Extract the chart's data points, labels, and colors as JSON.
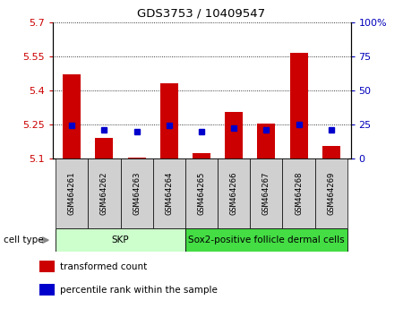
{
  "title": "GDS3753 / 10409547",
  "samples": [
    "GSM464261",
    "GSM464262",
    "GSM464263",
    "GSM464264",
    "GSM464265",
    "GSM464266",
    "GSM464267",
    "GSM464268",
    "GSM464269"
  ],
  "red_values": [
    5.47,
    5.19,
    5.105,
    5.43,
    5.125,
    5.305,
    5.255,
    5.565,
    5.155
  ],
  "blue_values": [
    5.245,
    5.225,
    5.22,
    5.245,
    5.22,
    5.235,
    5.225,
    5.25,
    5.225
  ],
  "ylim_left": [
    5.1,
    5.7
  ],
  "ylim_right": [
    0,
    100
  ],
  "yticks_left": [
    5.1,
    5.25,
    5.4,
    5.55,
    5.7
  ],
  "yticks_right": [
    0,
    25,
    50,
    75,
    100
  ],
  "ytick_labels_left": [
    "5.1",
    "5.25",
    "5.4",
    "5.55",
    "5.7"
  ],
  "ytick_labels_right": [
    "0",
    "25",
    "50",
    "75",
    "100%"
  ],
  "cell_type_groups": [
    {
      "label": "SKP",
      "start": 0,
      "end": 4,
      "color": "#ccffcc"
    },
    {
      "label": "Sox2-positive follicle dermal cells",
      "start": 4,
      "end": 9,
      "color": "#44dd44"
    }
  ],
  "cell_type_label": "cell type",
  "legend_items": [
    {
      "color": "#cc0000",
      "label": "transformed count"
    },
    {
      "color": "#0000cc",
      "label": "percentile rank within the sample"
    }
  ],
  "bar_width": 0.55,
  "bar_baseline": 5.1,
  "grid_color": "#000000",
  "red_color": "#cc0000",
  "blue_color": "#0000cc",
  "axis_label_color_left": "#cc0000",
  "axis_label_color_right": "#0000bb"
}
